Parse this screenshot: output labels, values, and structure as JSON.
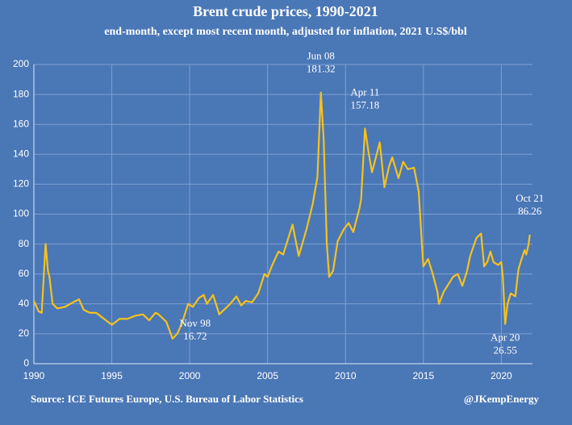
{
  "chart_data": {
    "type": "line",
    "title": "Brent crude prices, 1990-2021",
    "subtitle": "end-month, except most recent month, adjusted for inflation, 2021 U.S$/bbl",
    "source": "Source: ICE Futures Europe, U.S. Bureau of Labor Statistics",
    "credit": "@JKempEnergy",
    "color": "#f6c21c",
    "grid": true,
    "xlim": [
      1990,
      2022
    ],
    "xticks": [
      1990,
      1995,
      2000,
      2005,
      2010,
      2015,
      2020
    ],
    "ylim": [
      0,
      200
    ],
    "yticks": [
      0,
      20,
      40,
      60,
      80,
      100,
      120,
      140,
      160,
      180,
      200
    ],
    "x": [
      1990.0,
      1990.3,
      1990.5,
      1990.75,
      1990.9,
      1991.0,
      1991.2,
      1991.5,
      1992.0,
      1992.5,
      1992.9,
      1993.2,
      1993.6,
      1994.0,
      1994.5,
      1995.0,
      1995.5,
      1996.0,
      1996.5,
      1997.0,
      1997.4,
      1997.8,
      1998.0,
      1998.5,
      1998.9,
      1999.2,
      1999.5,
      1999.9,
      2000.2,
      2000.6,
      2000.9,
      2001.1,
      2001.5,
      2001.9,
      2002.2,
      2002.6,
      2003.0,
      2003.3,
      2003.6,
      2004.0,
      2004.4,
      2004.8,
      2005.0,
      2005.3,
      2005.7,
      2006.0,
      2006.6,
      2007.0,
      2007.5,
      2007.9,
      2008.2,
      2008.42,
      2008.6,
      2008.8,
      2008.95,
      2009.2,
      2009.5,
      2009.9,
      2010.2,
      2010.5,
      2010.9,
      2011.0,
      2011.25,
      2011.5,
      2011.7,
      2012.0,
      2012.2,
      2012.5,
      2012.8,
      2013.0,
      2013.4,
      2013.7,
      2014.0,
      2014.4,
      2014.7,
      2014.9,
      2015.0,
      2015.3,
      2015.6,
      2015.9,
      2016.0,
      2016.3,
      2016.6,
      2016.9,
      2017.2,
      2017.5,
      2017.8,
      2018.0,
      2018.4,
      2018.7,
      2018.9,
      2019.1,
      2019.3,
      2019.5,
      2019.8,
      2020.0,
      2020.1,
      2020.25,
      2020.4,
      2020.6,
      2020.9,
      2021.1,
      2021.3,
      2021.5,
      2021.6,
      2021.75,
      2021.83
    ],
    "values": [
      42,
      35,
      34,
      80,
      62,
      58,
      40,
      37,
      38,
      41,
      43,
      36,
      34,
      34,
      30,
      26,
      30,
      30,
      32,
      33,
      29,
      34,
      33,
      28,
      16.72,
      20,
      27,
      40,
      38,
      44,
      46,
      40,
      46,
      33,
      36,
      40,
      45,
      39,
      42,
      41,
      47,
      60,
      58,
      66,
      75,
      73,
      93,
      72,
      90,
      107,
      125,
      181.32,
      150,
      80,
      58,
      62,
      82,
      90,
      94,
      88,
      104,
      110,
      157.18,
      140,
      128,
      140,
      148,
      118,
      132,
      138,
      124,
      135,
      130,
      131,
      115,
      80,
      65,
      70,
      60,
      48,
      40,
      48,
      53,
      58,
      60,
      52,
      62,
      72,
      84,
      87,
      65,
      68,
      75,
      68,
      66,
      68,
      58,
      26.55,
      40,
      47,
      45,
      63,
      70,
      76,
      73,
      80,
      86.26
    ],
    "annotations": [
      {
        "label": "Jun 08",
        "value": 181.32,
        "x": 2008.42
      },
      {
        "label": "Apr 11",
        "value": 157.18,
        "x": 2011.25
      },
      {
        "label": "Oct 21",
        "value": 86.26,
        "x": 2021.83
      },
      {
        "label": "Nov 98",
        "value": 16.72,
        "x": 1998.9
      },
      {
        "label": "Apr 20",
        "value": 26.55,
        "x": 2020.25
      }
    ]
  }
}
